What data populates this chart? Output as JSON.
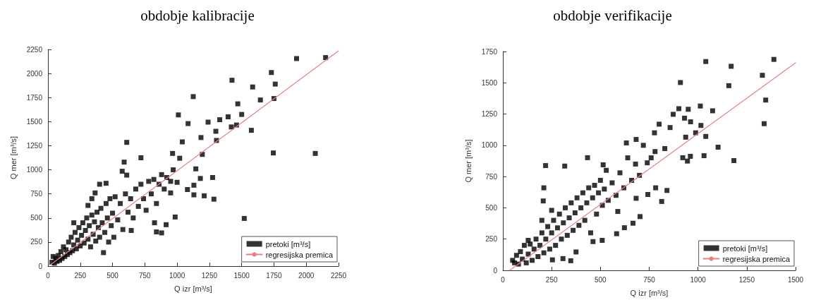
{
  "chart_data": [
    {
      "type": "scatter",
      "title": "obdobje kalibracije",
      "xlabel": "Q izr [m³/s]",
      "ylabel": "Q mer [m³/s]",
      "xlim": [
        0,
        2250
      ],
      "ylim": [
        0,
        2250
      ],
      "xticks": [
        0,
        250,
        500,
        750,
        1000,
        1250,
        1500,
        1750,
        2000,
        2250
      ],
      "yticks": [
        0,
        250,
        500,
        750,
        1000,
        1250,
        1500,
        1750,
        2000,
        2250
      ],
      "grid": false,
      "legend": "bottom right",
      "marker": "square",
      "series": [
        {
          "name": "pretoki [m³/s]",
          "type": "scatter",
          "color": "#000000",
          "x": [
            1925,
            2150,
            1730,
            1425,
            1585,
            1760,
            1125,
            1645,
            1750,
            1470,
            1010,
            1500,
            1085,
            1240,
            1330,
            1395,
            1420,
            1460,
            1575,
            1300,
            1185,
            610,
            1040,
            1305,
            1745,
            2070,
            1520,
            1195,
            1275,
            1285,
            1145,
            1180,
            1130,
            1080,
            1130,
            1210,
            985,
            915,
            880,
            840,
            825,
            590,
            720,
            1020,
            965,
            950,
            645,
            365,
            575,
            610,
            30,
            40,
            50,
            60,
            70,
            80,
            90,
            100,
            110,
            120,
            130,
            140,
            150,
            160,
            170,
            180,
            190,
            200,
            210,
            220,
            230,
            240,
            250,
            260,
            270,
            280,
            290,
            300,
            310,
            320,
            330,
            340,
            350,
            360,
            370,
            380,
            390,
            400,
            410,
            420,
            430,
            440,
            450,
            460,
            470,
            480,
            490,
            500,
            510,
            520,
            540,
            560,
            580,
            600,
            620,
            640,
            660,
            680,
            700,
            720,
            740,
            760,
            780,
            800,
            820,
            840,
            860,
            880,
            900,
            920,
            950,
            970,
            1000,
            200,
            400,
            450,
            340,
            310
          ],
          "values": [
            2155,
            2165,
            2010,
            1930,
            1860,
            1890,
            1760,
            1725,
            1740,
            1685,
            1570,
            1575,
            1480,
            1495,
            1520,
            1550,
            1445,
            1465,
            1410,
            1400,
            1335,
            1285,
            1290,
            1305,
            1175,
            1170,
            495,
            1160,
            920,
            695,
            1010,
            910,
            840,
            795,
            740,
            730,
            510,
            430,
            345,
            355,
            450,
            1080,
            1125,
            1120,
            1170,
            760,
            370,
            760,
            985,
            945,
            40,
            100,
            30,
            80,
            50,
            110,
            60,
            150,
            80,
            200,
            100,
            170,
            120,
            250,
            140,
            300,
            160,
            220,
            350,
            180,
            270,
            400,
            210,
            320,
            450,
            240,
            370,
            500,
            280,
            420,
            200,
            530,
            330,
            460,
            260,
            560,
            400,
            300,
            600,
            450,
            140,
            350,
            650,
            500,
            250,
            700,
            420,
            550,
            300,
            720,
            480,
            650,
            380,
            750,
            560,
            700,
            500,
            800,
            620,
            850,
            700,
            580,
            880,
            750,
            900,
            650,
            850,
            950,
            800,
            920,
            880,
            1000,
            870,
            450,
            850,
            860,
            700,
            630
          ]
        },
        {
          "name": "regresijska premica",
          "type": "line",
          "color": "#e88080",
          "line_style": "solid",
          "marker": "none",
          "x": [
            20,
            2250
          ],
          "values": [
            15,
            2235
          ]
        }
      ]
    },
    {
      "type": "scatter",
      "title": "obdobje verifikacije",
      "xlabel": "Q izr [m³/s]",
      "ylabel": "Q mer [m³/s]",
      "xlim": [
        0,
        1500
      ],
      "ylim": [
        0,
        1750
      ],
      "xticks": [
        0,
        250,
        500,
        750,
        1000,
        1250,
        1500
      ],
      "yticks": [
        0,
        250,
        500,
        750,
        1000,
        1250,
        1500,
        1750
      ],
      "grid": false,
      "legend": "bottom right",
      "marker": "square",
      "series": [
        {
          "name": "pretoki [m³/s]",
          "type": "scatter",
          "color": "#000000",
          "x": [
            1040,
            1389,
            1170,
            1330,
            910,
            1158,
            1347,
            1339,
            902,
            1012,
            1075,
            950,
            873,
            931,
            962,
            801,
            857,
            1015,
            988,
            1040,
            937,
            777,
            1103,
            922,
            961,
            1031,
            1184,
            946,
            830,
            683,
            633,
            434,
            219,
            317,
            514,
            210,
            207,
            841,
            814,
            783,
            743,
            683,
            703,
            667,
            589,
            509,
            462,
            348,
            308,
            254,
            375,
            623,
            583,
            50,
            60,
            70,
            80,
            90,
            100,
            110,
            120,
            130,
            140,
            150,
            160,
            170,
            180,
            190,
            200,
            210,
            220,
            230,
            240,
            250,
            260,
            270,
            280,
            290,
            300,
            310,
            320,
            330,
            340,
            350,
            360,
            370,
            380,
            390,
            400,
            410,
            420,
            430,
            440,
            450,
            460,
            470,
            480,
            490,
            500,
            510,
            520,
            530,
            540,
            560,
            580,
            600,
            620,
            640,
            660,
            680,
            700,
            720,
            740,
            760,
            780,
            200,
            250,
            130
          ],
          "values": [
            1670,
            1687,
            1632,
            1560,
            1502,
            1477,
            1362,
            1173,
            1293,
            1314,
            1276,
            1288,
            1248,
            1217,
            1188,
            1169,
            1142,
            1159,
            1100,
            1071,
            1065,
            1100,
            985,
            901,
            912,
            917,
            878,
            874,
            974,
            1047,
            1019,
            901,
            838,
            834,
            844,
            660,
            555,
            639,
            551,
            660,
            607,
            576,
            430,
            377,
            471,
            240,
            230,
            77,
            94,
            84,
            147,
            341,
            293,
            80,
            60,
            120,
            50,
            150,
            90,
            200,
            60,
            130,
            210,
            80,
            170,
            250,
            110,
            200,
            300,
            140,
            250,
            350,
            170,
            300,
            400,
            200,
            340,
            450,
            250,
            380,
            500,
            280,
            420,
            540,
            320,
            460,
            580,
            360,
            500,
            620,
            400,
            540,
            660,
            300,
            580,
            680,
            450,
            620,
            720,
            520,
            650,
            800,
            560,
            700,
            600,
            780,
            660,
            900,
            720,
            850,
            760,
            1000,
            860,
            900,
            950,
            400,
            480,
            240
          ]
        },
        {
          "name": "regresijska premica",
          "type": "line",
          "color": "#e88080",
          "line_style": "solid",
          "marker": "none",
          "x": [
            35,
            1500
          ],
          "values": [
            0,
            1660
          ]
        }
      ]
    }
  ]
}
